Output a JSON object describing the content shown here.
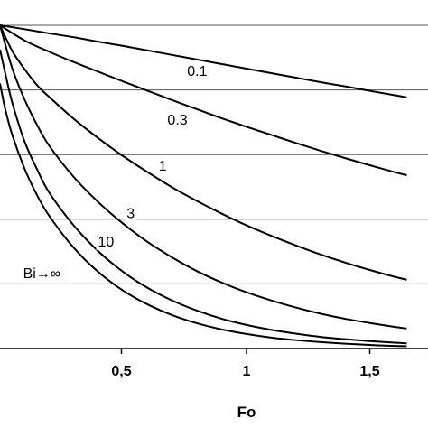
{
  "chart_data": {
    "type": "line",
    "title": "",
    "xlabel": "Fo",
    "ylabel": "",
    "xlim": [
      0,
      1.65
    ],
    "ylim": [
      0,
      1
    ],
    "x_ticks": [
      {
        "value": 0.5,
        "label": "0,5"
      },
      {
        "value": 1,
        "label": "1"
      },
      {
        "value": 1.5,
        "label": "1,5"
      }
    ],
    "y_gridlines": [
      0.2,
      0.4,
      0.6,
      0.8,
      1.0
    ],
    "grid": "horizontal",
    "legend": "none",
    "series": [
      {
        "name": "0.1",
        "label_at": [
          0.8,
          0.86
        ],
        "x": [
          0,
          0.1,
          0.2,
          0.3,
          0.4,
          0.5,
          0.6,
          0.7,
          0.8,
          0.9,
          1.0,
          1.1,
          1.2,
          1.3,
          1.4,
          1.5,
          1.6,
          1.65
        ],
        "y": [
          1.0,
          0.988,
          0.975,
          0.963,
          0.949,
          0.936,
          0.922,
          0.908,
          0.894,
          0.88,
          0.866,
          0.852,
          0.838,
          0.824,
          0.811,
          0.797,
          0.784,
          0.777
        ]
      },
      {
        "name": "0.3",
        "label_at": [
          0.72,
          0.71
        ],
        "x": [
          0,
          0.1,
          0.2,
          0.3,
          0.4,
          0.5,
          0.6,
          0.7,
          0.8,
          0.9,
          1.0,
          1.1,
          1.2,
          1.3,
          1.4,
          1.5,
          1.6,
          1.65
        ],
        "y": [
          1.0,
          0.953,
          0.918,
          0.886,
          0.856,
          0.826,
          0.797,
          0.768,
          0.74,
          0.712,
          0.686,
          0.661,
          0.636,
          0.612,
          0.589,
          0.567,
          0.546,
          0.536
        ]
      },
      {
        "name": "1",
        "label_at": [
          0.66,
          0.567
        ],
        "x": [
          0,
          0.05,
          0.1,
          0.15,
          0.2,
          0.3,
          0.4,
          0.5,
          0.6,
          0.7,
          0.8,
          0.9,
          1.0,
          1.1,
          1.2,
          1.3,
          1.4,
          1.5,
          1.6,
          1.65
        ],
        "y": [
          1.0,
          0.92,
          0.864,
          0.815,
          0.778,
          0.71,
          0.65,
          0.595,
          0.545,
          0.498,
          0.456,
          0.417,
          0.381,
          0.349,
          0.319,
          0.291,
          0.266,
          0.243,
          0.222,
          0.213
        ],
        "label_above": true
      },
      {
        "name": "3",
        "label_at": [
          0.53,
          0.42
        ],
        "x": [
          0,
          0.05,
          0.1,
          0.15,
          0.2,
          0.3,
          0.4,
          0.5,
          0.6,
          0.7,
          0.8,
          0.9,
          1.0,
          1.1,
          1.2,
          1.3,
          1.4,
          1.5,
          1.6,
          1.65
        ],
        "y": [
          1.0,
          0.866,
          0.77,
          0.692,
          0.627,
          0.53,
          0.452,
          0.386,
          0.329,
          0.281,
          0.239,
          0.204,
          0.174,
          0.149,
          0.127,
          0.108,
          0.092,
          0.079,
          0.067,
          0.062
        ]
      },
      {
        "name": "10",
        "label_at": [
          0.43,
          0.333
        ],
        "x": [
          0,
          0.02,
          0.05,
          0.1,
          0.15,
          0.2,
          0.3,
          0.4,
          0.5,
          0.6,
          0.7,
          0.8,
          0.9,
          1.0,
          1.1,
          1.2,
          1.3,
          1.4,
          1.5,
          1.6,
          1.65
        ],
        "y": [
          0.925,
          0.856,
          0.76,
          0.64,
          0.555,
          0.482,
          0.38,
          0.3,
          0.237,
          0.187,
          0.148,
          0.117,
          0.092,
          0.073,
          0.058,
          0.046,
          0.036,
          0.029,
          0.023,
          0.018,
          0.016
        ]
      },
      {
        "name": "Bi→∞",
        "label_at": [
          0.17,
          0.234
        ],
        "x": [
          0,
          0.02,
          0.05,
          0.1,
          0.15,
          0.2,
          0.3,
          0.4,
          0.5,
          0.6,
          0.7,
          0.8,
          0.9,
          1.0,
          1.1,
          1.2,
          1.3,
          1.4,
          1.5,
          1.6,
          1.65
        ],
        "y": [
          0.82,
          0.745,
          0.66,
          0.556,
          0.475,
          0.41,
          0.311,
          0.236,
          0.179,
          0.136,
          0.103,
          0.078,
          0.059,
          0.045,
          0.034,
          0.026,
          0.02,
          0.015,
          0.011,
          0.008,
          0.007
        ]
      }
    ]
  }
}
